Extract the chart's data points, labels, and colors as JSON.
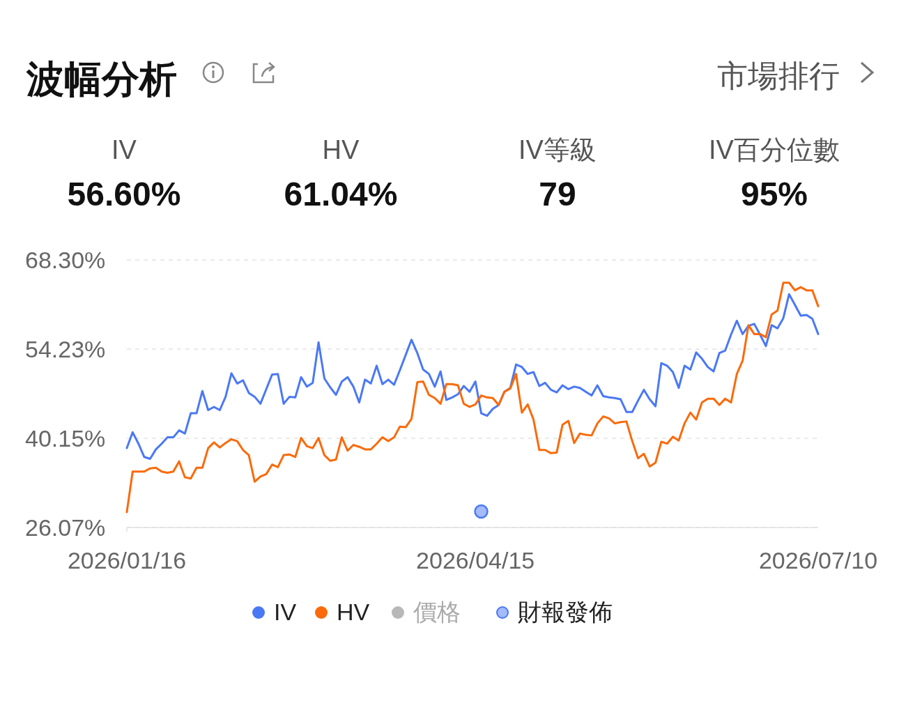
{
  "chart_data": {
    "type": "line",
    "title": "波幅分析",
    "annotations": [
      "IV",
      "56.60%",
      "HV",
      "61.04%",
      "IV等級",
      "79",
      "IV百分位數",
      "95%",
      "市場排行"
    ],
    "categories": [
      "2026/01/16",
      null,
      null,
      null,
      null,
      null,
      null,
      null,
      null,
      null,
      null,
      null,
      null,
      null,
      null,
      null,
      null,
      null,
      null,
      null,
      null,
      null,
      null,
      null,
      null,
      null,
      null,
      null,
      null,
      null,
      null,
      null,
      null,
      null,
      null,
      null,
      null,
      null,
      null,
      null,
      null,
      null,
      null,
      null,
      null,
      null,
      null,
      null,
      null,
      null,
      null,
      null,
      null,
      null,
      null,
      null,
      null,
      null,
      null,
      null,
      "2026/04/15",
      null,
      null,
      null,
      null,
      null,
      null,
      null,
      null,
      null,
      null,
      null,
      null,
      null,
      null,
      null,
      null,
      null,
      null,
      null,
      null,
      null,
      null,
      null,
      null,
      null,
      null,
      null,
      null,
      null,
      null,
      null,
      null,
      null,
      null,
      null,
      null,
      null,
      null,
      null,
      null,
      null,
      null,
      null,
      null,
      null,
      null,
      null,
      null,
      null,
      null,
      null,
      null,
      null,
      null,
      null,
      null,
      null,
      null,
      "2026/07/10"
    ],
    "series": [
      {
        "name": "IV",
        "color": "#4a78f5",
        "values": [
          38.6,
          41.1,
          39.3,
          37.2,
          36.9,
          38.4,
          39.3,
          40.3,
          40.3,
          41.4,
          40.9,
          44.1,
          44.1,
          47.6,
          44.6,
          45.1,
          44.6,
          46.7,
          50.4,
          48.8,
          49.3,
          47.3,
          46.7,
          45.6,
          47.9,
          50.2,
          50.3,
          45.6,
          46.7,
          46.6,
          49.8,
          48.3,
          48.9,
          55.3,
          49.6,
          48.2,
          47.0,
          49.1,
          49.8,
          48.3,
          45.8,
          49.4,
          48.8,
          51.6,
          48.7,
          49.4,
          48.6,
          50.9,
          53.3,
          55.7,
          53.6,
          51.0,
          50.3,
          48.3,
          50.7,
          46.2,
          46.6,
          47.1,
          48.4,
          47.5,
          49.1,
          44.1,
          43.7,
          44.8,
          45.4,
          47.5,
          48.1,
          51.8,
          51.4,
          50.3,
          50.6,
          48.4,
          48.9,
          47.8,
          47.4,
          48.5,
          47.9,
          48.3,
          48.1,
          47.5,
          46.9,
          48.5,
          46.8,
          46.6,
          46.5,
          46.3,
          44.3,
          44.3,
          46.1,
          47.8,
          46.3,
          45.2,
          52.0,
          51.6,
          50.6,
          48.1,
          51.6,
          51.0,
          53.7,
          52.7,
          51.4,
          50.7,
          53.6,
          54.0,
          56.5,
          58.7,
          56.6,
          57.9,
          58.2,
          56.5,
          54.7,
          58.0,
          57.5,
          59.1,
          62.9,
          61.2,
          59.5,
          59.6,
          59.0,
          56.6
        ]
      },
      {
        "name": "HV",
        "color": "#fa6a0a",
        "values": [
          28.5,
          34.9,
          34.9,
          34.9,
          35.4,
          35.5,
          34.9,
          34.7,
          34.9,
          36.5,
          34.0,
          33.8,
          35.5,
          35.5,
          38.6,
          39.5,
          38.7,
          39.4,
          40.0,
          39.7,
          38.3,
          37.5,
          33.3,
          34.1,
          34.5,
          36.0,
          35.6,
          37.5,
          37.6,
          37.2,
          40.2,
          38.9,
          38.6,
          40.2,
          37.5,
          36.6,
          36.8,
          40.3,
          38.2,
          39.1,
          38.8,
          38.4,
          38.4,
          39.3,
          40.3,
          39.7,
          40.3,
          42.0,
          41.9,
          43.2,
          49.0,
          49.1,
          47.0,
          46.5,
          45.6,
          48.7,
          48.7,
          48.5,
          45.6,
          45.1,
          45.5,
          46.9,
          46.6,
          46.5,
          45.4,
          47.5,
          48.0,
          50.3,
          44.2,
          45.5,
          43.1,
          38.3,
          38.3,
          37.8,
          37.9,
          42.3,
          42.9,
          39.4,
          40.9,
          40.7,
          40.6,
          42.5,
          43.6,
          43.3,
          42.5,
          42.7,
          42.8,
          39.7,
          37.0,
          37.7,
          35.7,
          36.3,
          39.6,
          39.3,
          40.4,
          39.8,
          42.5,
          44.2,
          43.1,
          45.8,
          46.4,
          46.4,
          45.4,
          46.4,
          45.8,
          50.3,
          52.4,
          58.0,
          56.6,
          56.6,
          56.1,
          59.7,
          60.3,
          64.7,
          64.7,
          63.5,
          64.0,
          63.5,
          63.5,
          61.0
        ]
      },
      {
        "name": "價格",
        "color": "#b8b8b8",
        "values": [
          null,
          null,
          null,
          null,
          null,
          null,
          null,
          null,
          null,
          null,
          null,
          null,
          null,
          null,
          null,
          null,
          null,
          null,
          null,
          null,
          null,
          null,
          null,
          null,
          null,
          null,
          null,
          null,
          null,
          null,
          null,
          null,
          null,
          null,
          null,
          null,
          null,
          null,
          null,
          null,
          null,
          null,
          null,
          null,
          null,
          null,
          null,
          null,
          null,
          null,
          null,
          null,
          null,
          null,
          null,
          null,
          null,
          null,
          null,
          null,
          null,
          null,
          null,
          null,
          null,
          null,
          null,
          null,
          null,
          null,
          null,
          null,
          null,
          null,
          null,
          null,
          null,
          null,
          null,
          null,
          null,
          null,
          null,
          null,
          null,
          null,
          null,
          null,
          null,
          null,
          null,
          null,
          null,
          null,
          null,
          null,
          null,
          null,
          null,
          null,
          null,
          null,
          null,
          null,
          null,
          null,
          null,
          null,
          null,
          null,
          null,
          null,
          null,
          null,
          null,
          null,
          null,
          null,
          null,
          null
        ]
      },
      {
        "name": "財報發佈",
        "type": "scatter",
        "marker": "circle",
        "color": "#4a78f5",
        "values": [
          null,
          null,
          null,
          null,
          null,
          null,
          null,
          null,
          null,
          null,
          null,
          null,
          null,
          null,
          null,
          null,
          null,
          null,
          null,
          null,
          null,
          null,
          null,
          null,
          null,
          null,
          null,
          null,
          null,
          null,
          null,
          null,
          null,
          null,
          null,
          null,
          null,
          null,
          null,
          null,
          null,
          null,
          null,
          null,
          null,
          null,
          null,
          null,
          null,
          null,
          null,
          null,
          null,
          null,
          null,
          null,
          null,
          null,
          null,
          null,
          null,
          28.6,
          null,
          null,
          null,
          null,
          null,
          null,
          null,
          null,
          null,
          null,
          null,
          null,
          null,
          null,
          null,
          null,
          null,
          null,
          null,
          null,
          null,
          null,
          null,
          null,
          null,
          null,
          null,
          null,
          null,
          null,
          null,
          null,
          null,
          null,
          null,
          null,
          null,
          null,
          null,
          null,
          null,
          null,
          null,
          null,
          null,
          null,
          null,
          null,
          null,
          null,
          null,
          null,
          null,
          null,
          null,
          null,
          null,
          null
        ]
      }
    ],
    "ylim": [
      26.07,
      68.3
    ],
    "yticks": [
      {
        "value": 26.07,
        "label": "26.07%"
      },
      {
        "value": 40.15,
        "label": "40.15%"
      },
      {
        "value": 54.23,
        "label": "54.23%"
      },
      {
        "value": 68.3,
        "label": "68.30%"
      }
    ],
    "grid": "y",
    "legend": "bottom",
    "line_style": "solid"
  }
}
